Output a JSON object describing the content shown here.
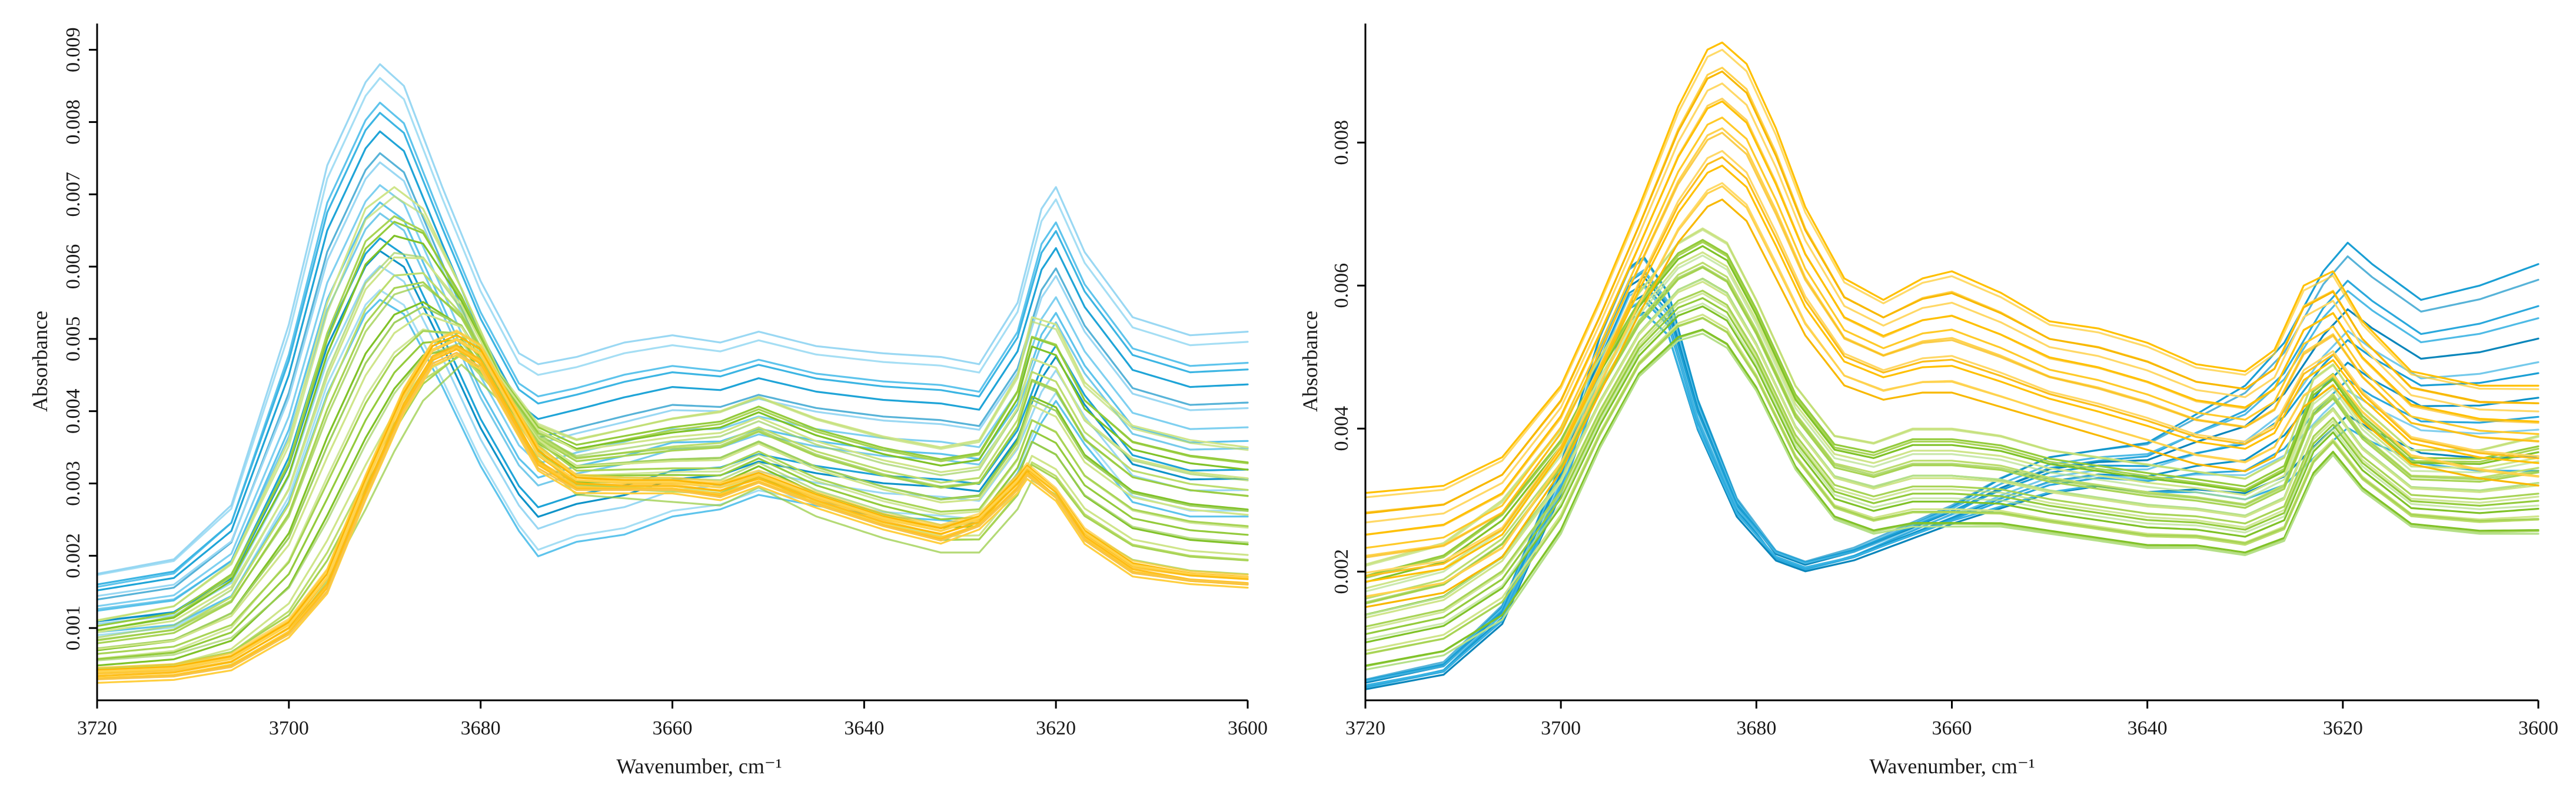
{
  "chart_data": [
    {
      "type": "line",
      "panel": "left",
      "title": "",
      "xlabel": "Wavenumber, cm⁻¹",
      "ylabel": "Absorbance",
      "xlim": [
        3720,
        3600
      ],
      "ylim": [
        0.0,
        0.0092
      ],
      "x_ticks": [
        3720,
        3700,
        3680,
        3660,
        3640,
        3620,
        3600
      ],
      "y_ticks": [
        0.001,
        0.002,
        0.003,
        0.004,
        0.005,
        0.006,
        0.007,
        0.008,
        0.009
      ],
      "y_tick_labels": [
        "0.001",
        "0.002",
        "0.003",
        "0.004",
        "0.005",
        "0.006",
        "0.007",
        "0.008",
        "0.009"
      ],
      "grid": false,
      "legend": "none",
      "series_groups": [
        {
          "name": "blue",
          "colors": [
            "#9ad8f3",
            "#7fd0f0",
            "#5ec4ec",
            "#3cb5e3",
            "#1fa4d7",
            "#0f93c8"
          ],
          "count": 15,
          "curve": {
            "x": [
              3720,
              3712,
              3706,
              3700,
              3696,
              3692,
              3690.5,
              3688,
              3684,
              3680,
              3676,
              3674,
              3670,
              3665,
              3660,
              3655,
              3651,
              3645,
              3638,
              3632,
              3628,
              3624,
              3621.5,
              3620,
              3617,
              3612,
              3606,
              3600
            ],
            "start": {
              "y": [
                0.00175,
                0.00195,
                0.0027,
                0.0052,
                0.0074,
                0.00855,
                0.0088,
                0.0085,
                0.0071,
                0.0058,
                0.0048,
                0.00465,
                0.00475,
                0.00495,
                0.00505,
                0.00495,
                0.0051,
                0.0049,
                0.0048,
                0.00475,
                0.00465,
                0.0055,
                0.0068,
                0.0071,
                0.0062,
                0.0053,
                0.00505,
                0.0051
              ]
            },
            "end": {
              "y": [
                0.0009,
                0.001,
                0.0014,
                0.0027,
                0.0042,
                0.0053,
                0.0055,
                0.0053,
                0.0043,
                0.0032,
                0.0023,
                0.00195,
                0.00215,
                0.00225,
                0.0025,
                0.0026,
                0.0028,
                0.00265,
                0.0025,
                0.00245,
                0.0024,
                0.0031,
                0.0038,
                0.0041,
                0.0035,
                0.0027,
                0.0025,
                0.0025
              ]
            }
          }
        },
        {
          "name": "green",
          "colors": [
            "#cfe58a",
            "#bcdd6e",
            "#a8d455",
            "#94cb3c",
            "#80c228",
            "#a0d060"
          ],
          "count": 22,
          "curve": {
            "x": [
              3720,
              3712,
              3706,
              3700,
              3696,
              3692,
              3689,
              3686,
              3682,
              3678,
              3674,
              3670,
              3665,
              3660,
              3655,
              3651,
              3645,
              3638,
              3632,
              3628,
              3624,
              3622.5,
              3620,
              3617,
              3612,
              3606,
              3600
            ],
            "start": {
              "y": [
                0.0011,
                0.0013,
                0.0019,
                0.0036,
                0.0055,
                0.0068,
                0.0071,
                0.0068,
                0.0057,
                0.0045,
                0.0038,
                0.0036,
                0.00375,
                0.0039,
                0.004,
                0.0042,
                0.0039,
                0.00365,
                0.0035,
                0.0036,
                0.0045,
                0.0053,
                0.0052,
                0.0044,
                0.0038,
                0.0036,
                0.0035
              ]
            },
            "end": {
              "y": [
                0.00035,
                0.0004,
                0.00055,
                0.001,
                0.0017,
                0.0027,
                0.0035,
                0.0042,
                0.0047,
                0.0042,
                0.0034,
                0.0029,
                0.00285,
                0.0028,
                0.00275,
                0.003,
                0.0026,
                0.0023,
                0.0021,
                0.0021,
                0.0027,
                0.0031,
                0.0029,
                0.0024,
                0.002,
                0.00185,
                0.0018
              ]
            }
          }
        },
        {
          "name": "orange",
          "colors": [
            "#ffd24d",
            "#ffc933",
            "#ffbf1a",
            "#fbb500",
            "#ffcf40",
            "#f7c44a"
          ],
          "count": 12,
          "curve": {
            "x": [
              3720,
              3712,
              3706,
              3700,
              3696,
              3692,
              3688,
              3685,
              3682.5,
              3680,
              3677,
              3674,
              3670,
              3665,
              3660,
              3655,
              3651,
              3645,
              3638,
              3632,
              3628,
              3624,
              3623,
              3620,
              3617,
              3612,
              3606,
              3600
            ],
            "start": {
              "y": [
                0.00042,
                0.00047,
                0.00062,
                0.0011,
                0.0018,
                0.0031,
                0.0043,
                0.00495,
                0.0051,
                0.0049,
                0.0042,
                0.0035,
                0.0031,
                0.00305,
                0.00305,
                0.003,
                0.00315,
                0.00285,
                0.00255,
                0.0024,
                0.00255,
                0.0031,
                0.00325,
                0.0029,
                0.00235,
                0.0019,
                0.00175,
                0.0017
              ]
            },
            "end": {
              "y": [
                0.00028,
                0.00032,
                0.00045,
                0.0009,
                0.0015,
                0.0028,
                0.004,
                0.00465,
                0.0048,
                0.0046,
                0.0039,
                0.0032,
                0.0029,
                0.0029,
                0.0029,
                0.0028,
                0.003,
                0.0027,
                0.0024,
                0.0022,
                0.0024,
                0.0029,
                0.0031,
                0.0028,
                0.0022,
                0.00175,
                0.00165,
                0.0016
              ]
            }
          }
        }
      ]
    },
    {
      "type": "line",
      "panel": "right",
      "title": "",
      "xlabel": "Wavenumber, cm⁻¹",
      "ylabel": "Absorbance",
      "xlim": [
        3720,
        3600
      ],
      "ylim": [
        0.0002,
        0.0095
      ],
      "x_ticks": [
        3720,
        3700,
        3680,
        3660,
        3640,
        3620,
        3600
      ],
      "y_ticks": [
        0.002,
        0.004,
        0.006,
        0.008
      ],
      "y_tick_labels": [
        "0.002",
        "0.004",
        "0.006",
        "0.008"
      ],
      "grid": false,
      "legend": "none",
      "series_groups": [
        {
          "name": "blue",
          "colors": [
            "#1a9fd4",
            "#0f93c8",
            "#2aa8dc",
            "#4fbbe6",
            "#0a86bb",
            "#38b2e2"
          ],
          "count": 12,
          "curve": {
            "x": [
              3720,
              3712,
              3706,
              3700,
              3696,
              3693,
              3691.5,
              3689,
              3686,
              3682,
              3678,
              3675,
              3670,
              3665,
              3660,
              3655,
              3650,
              3645,
              3640,
              3635,
              3630,
              3626,
              3622,
              3619.5,
              3617,
              3612,
              3606,
              3600
            ],
            "start": {
              "y": [
                0.00045,
                0.0007,
                0.0015,
                0.0035,
                0.0053,
                0.00625,
                0.0064,
                0.0059,
                0.0044,
                0.003,
                0.00225,
                0.0021,
                0.0023,
                0.0026,
                0.0029,
                0.0033,
                0.0036,
                0.0037,
                0.0038,
                0.0042,
                0.0046,
                0.0052,
                0.0062,
                0.0066,
                0.0063,
                0.0058,
                0.006,
                0.0063
              ]
            },
            "end": {
              "y": [
                0.0004,
                0.0006,
                0.0013,
                0.0031,
                0.0046,
                0.0055,
                0.0056,
                0.0053,
                0.004,
                0.0028,
                0.0022,
                0.00205,
                0.0022,
                0.00245,
                0.0027,
                0.0029,
                0.0031,
                0.0032,
                0.0031,
                0.0031,
                0.003,
                0.0032,
                0.0037,
                0.004,
                0.0038,
                0.0035,
                0.0034,
                0.0034
              ]
            }
          }
        },
        {
          "name": "green",
          "colors": [
            "#cfe58a",
            "#bcdd6e",
            "#a8d455",
            "#94cb3c",
            "#80c228",
            "#b5e08a"
          ],
          "count": 24,
          "curve": {
            "x": [
              3720,
              3712,
              3706,
              3700,
              3696,
              3692,
              3688,
              3685.5,
              3683,
              3680,
              3676,
              3672,
              3668,
              3664,
              3660,
              3655,
              3650,
              3645,
              3640,
              3635,
              3630,
              3626,
              3623,
              3621,
              3618,
              3613,
              3606,
              3600
            ],
            "start": {
              "y": [
                0.0021,
                0.0024,
                0.003,
                0.004,
                0.005,
                0.0059,
                0.0066,
                0.0068,
                0.0066,
                0.0058,
                0.0046,
                0.0039,
                0.0038,
                0.004,
                0.004,
                0.0039,
                0.0037,
                0.0036,
                0.0035,
                0.0034,
                0.0033,
                0.0036,
                0.0047,
                0.0049,
                0.0043,
                0.0037,
                0.0037,
                0.0039
              ]
            },
            "end": {
              "y": [
                0.0006,
                0.0008,
                0.0013,
                0.0025,
                0.0037,
                0.0047,
                0.0052,
                0.0053,
                0.0051,
                0.0045,
                0.0034,
                0.0027,
                0.0025,
                0.0026,
                0.0026,
                0.0026,
                0.0025,
                0.0024,
                0.0023,
                0.0023,
                0.0022,
                0.0024,
                0.0033,
                0.0036,
                0.0031,
                0.0026,
                0.0025,
                0.0025
              ]
            }
          }
        },
        {
          "name": "orange",
          "colors": [
            "#ffc000",
            "#ffca28",
            "#ffd24d",
            "#f8b800",
            "#ffd866",
            "#fbbf1c"
          ],
          "count": 16,
          "curve": {
            "x": [
              3720,
              3712,
              3706,
              3700,
              3696,
              3692,
              3688,
              3685,
              3683.5,
              3681,
              3678,
              3675,
              3671,
              3667,
              3663,
              3660,
              3655,
              3650,
              3645,
              3640,
              3635,
              3630,
              3627,
              3624,
              3621,
              3618,
              3613,
              3606,
              3600
            ],
            "start": {
              "y": [
                0.0031,
                0.0032,
                0.0036,
                0.0046,
                0.0058,
                0.0071,
                0.0085,
                0.0093,
                0.0094,
                0.0091,
                0.0082,
                0.0071,
                0.0061,
                0.0058,
                0.0061,
                0.0062,
                0.0059,
                0.0055,
                0.0054,
                0.0052,
                0.0049,
                0.0048,
                0.0051,
                0.006,
                0.0062,
                0.0055,
                0.0048,
                0.0046,
                0.0046
              ]
            },
            "end": {
              "y": [
                0.0015,
                0.0017,
                0.0022,
                0.0034,
                0.0045,
                0.0056,
                0.0066,
                0.0071,
                0.0072,
                0.0069,
                0.0061,
                0.0053,
                0.0046,
                0.0044,
                0.0045,
                0.0045,
                0.0043,
                0.0041,
                0.0039,
                0.0037,
                0.0035,
                0.0034,
                0.0036,
                0.0043,
                0.0046,
                0.0041,
                0.0035,
                0.0033,
                0.0032
              ]
            }
          }
        }
      ]
    }
  ]
}
